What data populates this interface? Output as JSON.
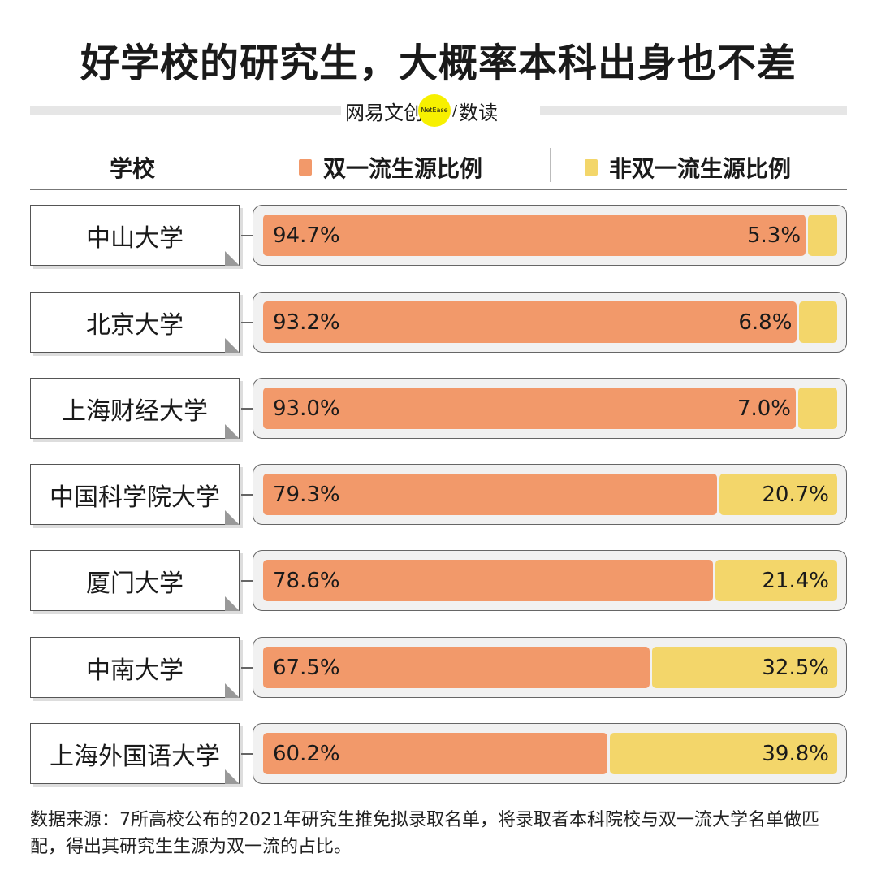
{
  "title": "好学校的研究生，大概率本科出身也不差",
  "logo": {
    "left": "网易文创",
    "badge": "NetEase",
    "slash": "/",
    "right": "数读"
  },
  "header": {
    "school": "学校",
    "legend": [
      {
        "label": "双一流生源比例",
        "color": "#f2996a"
      },
      {
        "label": "非双一流生源比例",
        "color": "#f3d66a"
      }
    ]
  },
  "chart_data": {
    "type": "bar",
    "stacked": true,
    "orientation": "horizontal",
    "categories": [
      "中山大学",
      "北京大学",
      "上海财经大学",
      "中国科学院大学",
      "厦门大学",
      "中南大学",
      "上海外国语大学"
    ],
    "series": [
      {
        "name": "双一流生源比例",
        "color": "#f2996a",
        "values": [
          94.7,
          93.2,
          93.0,
          79.3,
          78.6,
          67.5,
          60.2
        ],
        "labels": [
          "94.7%",
          "93.2%",
          "93.0%",
          "79.3%",
          "78.6%",
          "67.5%",
          "60.2%"
        ]
      },
      {
        "name": "非双一流生源比例",
        "color": "#f3d66a",
        "values": [
          5.3,
          6.8,
          7.0,
          20.7,
          21.4,
          32.5,
          39.8
        ],
        "labels": [
          "5.3%",
          "6.8%",
          "7.0%",
          "20.7%",
          "21.4%",
          "32.5%",
          "39.8%"
        ]
      }
    ],
    "xlim": [
      0,
      100
    ]
  },
  "note": "数据来源：7所高校公布的2021年研究生推免拟录取名单，将录取者本科院校与双一流大学名单做匹配，得出其研究生生源为双一流的占比。"
}
